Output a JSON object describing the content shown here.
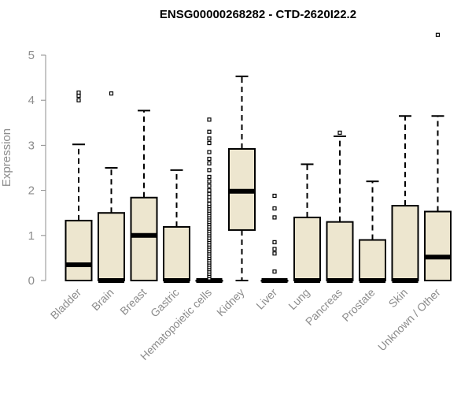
{
  "chart_data": {
    "type": "boxplot",
    "title": "ENSG00000268282 - CTD-2620I22.2",
    "xlabel": "",
    "ylabel": "Expression",
    "ylim": [
      0,
      5.5
    ],
    "yticks": [
      0,
      1,
      2,
      3,
      4,
      5
    ],
    "grid": false,
    "colors": {
      "box_fill": "#ede6cf",
      "stroke": "#000000",
      "axis": "#8c8c8c"
    },
    "categories": [
      "Bladder",
      "Brain",
      "Breast",
      "Gastric",
      "Hematopoietic cells",
      "Kidney",
      "Liver",
      "Lung",
      "Pancreas",
      "Prostate",
      "Skin",
      "Unknown / Other"
    ],
    "boxes": [
      {
        "category": "Bladder",
        "q1": 0,
        "median": 0.35,
        "q3": 1.33,
        "whisker_low": 0,
        "whisker_high": 3.02,
        "outliers": [
          4.0,
          4.1,
          4.17
        ]
      },
      {
        "category": "Brain",
        "q1": 0,
        "median": 0,
        "q3": 1.5,
        "whisker_low": 0,
        "whisker_high": 2.5,
        "outliers": [
          4.15
        ]
      },
      {
        "category": "Breast",
        "q1": 0,
        "median": 1.0,
        "q3": 1.84,
        "whisker_low": 0,
        "whisker_high": 3.77,
        "outliers": []
      },
      {
        "category": "Gastric",
        "q1": 0,
        "median": 0,
        "q3": 1.19,
        "whisker_low": 0,
        "whisker_high": 2.45,
        "outliers": []
      },
      {
        "category": "Hematopoietic cells",
        "q1": 0,
        "median": 0,
        "q3": 0,
        "whisker_low": 0,
        "whisker_high": 0,
        "outliers": [
          0.05,
          0.1,
          0.15,
          0.2,
          0.25,
          0.3,
          0.35,
          0.4,
          0.45,
          0.5,
          0.55,
          0.6,
          0.65,
          0.7,
          0.75,
          0.8,
          0.85,
          0.9,
          0.95,
          1.0,
          1.05,
          1.1,
          1.15,
          1.2,
          1.25,
          1.3,
          1.35,
          1.4,
          1.45,
          1.5,
          1.55,
          1.6,
          1.65,
          1.7,
          1.78,
          1.85,
          1.92,
          2.0,
          2.1,
          2.2,
          2.3,
          2.45,
          2.6,
          2.7,
          2.85,
          3.05,
          3.15,
          3.3,
          3.57
        ]
      },
      {
        "category": "Kidney",
        "q1": 1.12,
        "median": 1.98,
        "q3": 2.92,
        "whisker_low": 0,
        "whisker_high": 4.53,
        "outliers": []
      },
      {
        "category": "Liver",
        "q1": 0,
        "median": 0,
        "q3": 0,
        "whisker_low": 0,
        "whisker_high": 0,
        "outliers": [
          0.2,
          0.6,
          0.7,
          0.85,
          1.4,
          1.6,
          1.88
        ]
      },
      {
        "category": "Lung",
        "q1": 0,
        "median": 0,
        "q3": 1.4,
        "whisker_low": 0,
        "whisker_high": 2.58,
        "outliers": []
      },
      {
        "category": "Pancreas",
        "q1": 0,
        "median": 0,
        "q3": 1.3,
        "whisker_low": 0,
        "whisker_high": 3.2,
        "outliers": [
          3.28
        ]
      },
      {
        "category": "Prostate",
        "q1": 0,
        "median": 0,
        "q3": 0.9,
        "whisker_low": 0,
        "whisker_high": 2.2,
        "outliers": []
      },
      {
        "category": "Skin",
        "q1": 0,
        "median": 0,
        "q3": 1.66,
        "whisker_low": 0,
        "whisker_high": 3.65,
        "outliers": []
      },
      {
        "category": "Unknown / Other",
        "q1": 0,
        "median": 0.52,
        "q3": 1.53,
        "whisker_low": 0,
        "whisker_high": 3.65,
        "outliers": [
          5.45
        ]
      }
    ]
  }
}
